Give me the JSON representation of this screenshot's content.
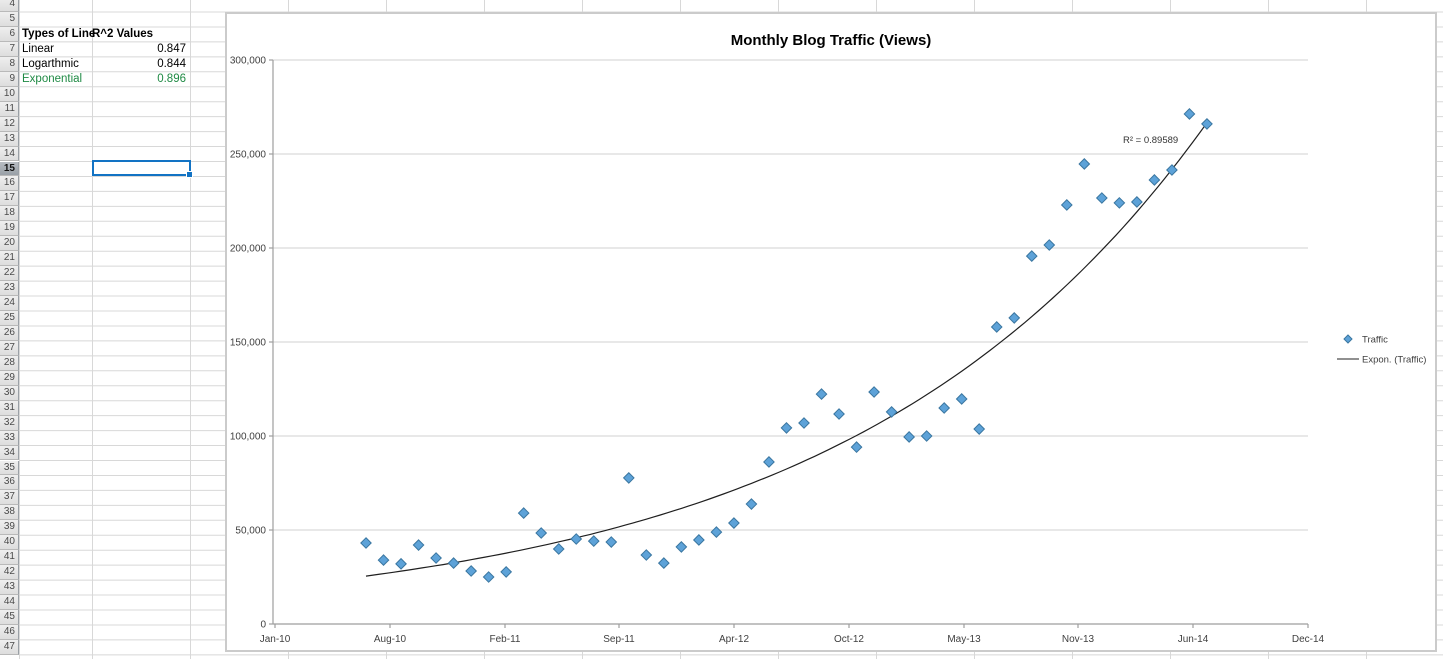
{
  "spreadsheet": {
    "row_numbers": [
      4,
      5,
      6,
      7,
      8,
      9,
      10,
      11,
      12,
      13,
      14,
      15,
      16,
      17,
      18,
      19,
      20,
      21,
      22,
      23,
      24,
      25,
      26,
      27,
      28,
      29,
      30,
      31,
      32,
      33,
      34,
      35,
      36,
      37,
      38,
      39,
      40,
      41,
      42,
      43,
      44,
      45,
      46,
      47
    ],
    "selected_row": 15,
    "selected_cell": {
      "row": 15,
      "column": "B"
    },
    "table": {
      "header": {
        "col_a": "Types of Line",
        "col_b": "R^2 Values"
      },
      "rows": [
        {
          "line_type": "Linear",
          "r2": "0.847",
          "highlight": false
        },
        {
          "line_type": "Logarthmic",
          "r2": "0.844",
          "highlight": false
        },
        {
          "line_type": "Exponential",
          "r2": "0.896",
          "highlight": true
        }
      ]
    }
  },
  "chart_data": {
    "type": "scatter",
    "title": "Monthly Blog Traffic (Views)",
    "x_tick_labels": [
      "Jan-10",
      "Aug-10",
      "Feb-11",
      "Sep-11",
      "Apr-12",
      "Oct-12",
      "May-13",
      "Nov-13",
      "Jun-14",
      "Dec-14"
    ],
    "y_tick_labels": [
      "300,000",
      "250,000",
      "200,000",
      "150,000",
      "100,000",
      "50,000",
      "0"
    ],
    "ylim": [
      0,
      300000
    ],
    "y_major_unit": 50000,
    "grid": true,
    "x_months": [
      "Jun-10",
      "Jul-10",
      "Aug-10",
      "Sep-10",
      "Oct-10",
      "Nov-10",
      "Dec-10",
      "Jan-11",
      "Feb-11",
      "Mar-11",
      "Apr-11",
      "May-11",
      "Jun-11",
      "Jul-11",
      "Aug-11",
      "Sep-11",
      "Oct-11",
      "Nov-11",
      "Dec-11",
      "Jan-12",
      "Feb-12",
      "Mar-12",
      "Apr-12",
      "May-12",
      "Jun-12",
      "Jul-12",
      "Aug-12",
      "Sep-12",
      "Oct-12",
      "Nov-12",
      "Dec-12",
      "Jan-13",
      "Feb-13",
      "Mar-13",
      "Apr-13",
      "May-13",
      "Jun-13",
      "Jul-13",
      "Aug-13",
      "Sep-13",
      "Oct-13",
      "Nov-13",
      "Dec-13",
      "Jan-14",
      "Feb-14",
      "Mar-14",
      "Apr-14",
      "May-14",
      "Jun-14"
    ],
    "series": [
      {
        "name": "Traffic",
        "marker": "diamond",
        "values": [
          43100,
          34000,
          32000,
          42000,
          35100,
          32400,
          28200,
          25000,
          27700,
          59000,
          48400,
          39900,
          45200,
          44100,
          43600,
          77700,
          36700,
          32400,
          41000,
          44700,
          48900,
          53700,
          63800,
          86200,
          104300,
          106900,
          122300,
          111700,
          94100,
          123400,
          112800,
          99500,
          100000,
          114900,
          119700,
          103700,
          158000,
          162800,
          195700,
          201600,
          222900,
          244700,
          226600,
          224000,
          224500,
          236200,
          241500,
          271300,
          266000
        ]
      }
    ],
    "trendline": {
      "name": "Expon. (Traffic)",
      "type": "exponential",
      "a": 25500,
      "b": 0.0489,
      "r_squared": 0.89589,
      "r_squared_label": "R² = 0.89589"
    },
    "legend": {
      "position": "right",
      "entries": [
        "Traffic",
        "Expon. (Traffic)"
      ]
    },
    "colors": {
      "point_fill": "#5da2d8",
      "point_stroke": "#3a76a0",
      "trendline": "#1f1f1f",
      "gridline": "#d9d9d9",
      "axis": "#9e9e9e",
      "label_text": "#3f3f3f"
    }
  },
  "ui_colors": {
    "selection_blue": "#1273c4",
    "highlight_green": "#1f8a44"
  }
}
